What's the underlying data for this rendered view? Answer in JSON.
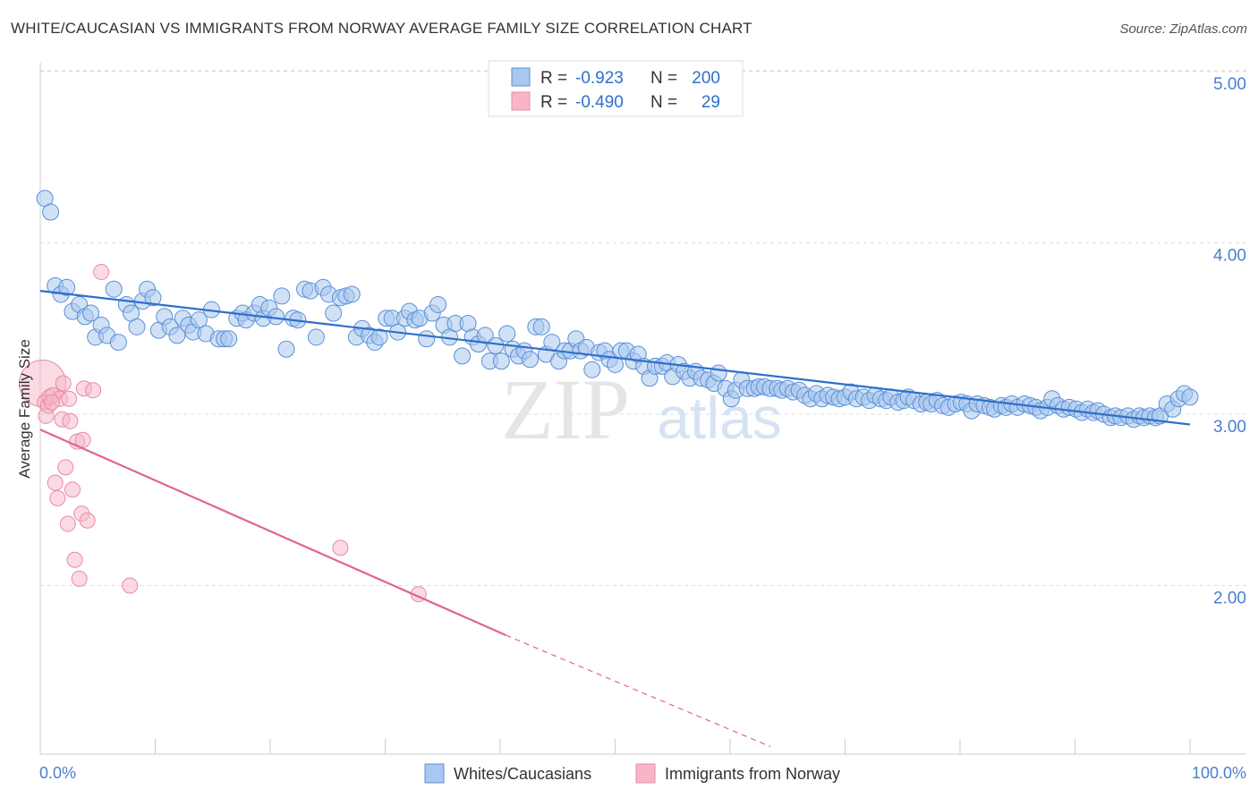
{
  "title": "WHITE/CAUCASIAN VS IMMIGRANTS FROM NORWAY AVERAGE FAMILY SIZE CORRELATION CHART",
  "source": "Source: ZipAtlas.com",
  "watermark": {
    "zip": "ZIP",
    "atlas": "atlas"
  },
  "colors": {
    "blue_fill": "#a9c8ef",
    "blue_stroke": "#5b8fd6",
    "blue_line": "#2f6fcb",
    "pink_fill": "#f7b6c8",
    "pink_stroke": "#e88aa6",
    "pink_line": "#e0648f",
    "tick_label": "#4a7fd0",
    "grid": "#dddddd"
  },
  "legend_top": {
    "rows": [
      {
        "r_label": "R =",
        "r_value": "-0.923",
        "n_label": "N =",
        "n_value": "200"
      },
      {
        "r_label": "R =",
        "r_value": "-0.490",
        "n_label": "N =",
        "n_value": "29"
      }
    ]
  },
  "legend_bottom": {
    "items": [
      {
        "label": "Whites/Caucasians"
      },
      {
        "label": "Immigrants from Norway"
      }
    ]
  },
  "chart_data": {
    "type": "scatter",
    "ylabel": "Average Family Size",
    "x_tick_labels": [
      "0.0%",
      "100.0%"
    ],
    "y_ticks": [
      {
        "value": 2.0,
        "label": "2.00"
      },
      {
        "value": 3.0,
        "label": "3.00"
      },
      {
        "value": 4.0,
        "label": "4.00"
      },
      {
        "value": 5.0,
        "label": "5.00"
      }
    ],
    "xlim": [
      0,
      100
    ],
    "ylim": [
      1.08,
      5.1
    ],
    "grid": true,
    "series": [
      {
        "name": "Whites/Caucasians",
        "trend": {
          "x0": 0,
          "y0": 3.72,
          "x1": 100,
          "y1": 2.94
        },
        "points": [
          [
            0.4,
            4.26
          ],
          [
            0.9,
            4.18
          ],
          [
            1.3,
            3.75
          ],
          [
            1.8,
            3.7
          ],
          [
            2.3,
            3.74
          ],
          [
            2.8,
            3.6
          ],
          [
            3.4,
            3.64
          ],
          [
            3.9,
            3.57
          ],
          [
            4.4,
            3.59
          ],
          [
            4.8,
            3.45
          ],
          [
            5.3,
            3.52
          ],
          [
            5.8,
            3.46
          ],
          [
            6.4,
            3.73
          ],
          [
            6.8,
            3.42
          ],
          [
            7.5,
            3.64
          ],
          [
            7.9,
            3.59
          ],
          [
            8.4,
            3.51
          ],
          [
            8.9,
            3.66
          ],
          [
            9.3,
            3.73
          ],
          [
            9.8,
            3.68
          ],
          [
            10.3,
            3.49
          ],
          [
            10.8,
            3.57
          ],
          [
            11.3,
            3.51
          ],
          [
            11.9,
            3.46
          ],
          [
            12.4,
            3.56
          ],
          [
            12.9,
            3.52
          ],
          [
            13.3,
            3.48
          ],
          [
            13.8,
            3.55
          ],
          [
            14.4,
            3.47
          ],
          [
            14.9,
            3.61
          ],
          [
            15.5,
            3.44
          ],
          [
            16.0,
            3.44
          ],
          [
            16.4,
            3.44
          ],
          [
            17.1,
            3.56
          ],
          [
            17.6,
            3.59
          ],
          [
            17.9,
            3.55
          ],
          [
            18.6,
            3.59
          ],
          [
            19.1,
            3.64
          ],
          [
            19.4,
            3.56
          ],
          [
            19.9,
            3.62
          ],
          [
            20.5,
            3.57
          ],
          [
            21.0,
            3.69
          ],
          [
            21.4,
            3.38
          ],
          [
            22.0,
            3.56
          ],
          [
            22.4,
            3.55
          ],
          [
            23.0,
            3.73
          ],
          [
            23.5,
            3.72
          ],
          [
            24.0,
            3.45
          ],
          [
            24.6,
            3.74
          ],
          [
            25.1,
            3.7
          ],
          [
            25.5,
            3.59
          ],
          [
            26.1,
            3.68
          ],
          [
            26.6,
            3.69
          ],
          [
            27.1,
            3.7
          ],
          [
            27.5,
            3.45
          ],
          [
            28.0,
            3.5
          ],
          [
            28.6,
            3.46
          ],
          [
            29.1,
            3.42
          ],
          [
            29.5,
            3.45
          ],
          [
            30.1,
            3.56
          ],
          [
            30.6,
            3.56
          ],
          [
            31.1,
            3.48
          ],
          [
            31.7,
            3.56
          ],
          [
            32.1,
            3.6
          ],
          [
            32.6,
            3.55
          ],
          [
            33.0,
            3.56
          ],
          [
            33.6,
            3.44
          ],
          [
            34.1,
            3.59
          ],
          [
            34.6,
            3.64
          ],
          [
            35.1,
            3.52
          ],
          [
            35.6,
            3.45
          ],
          [
            36.1,
            3.53
          ],
          [
            36.7,
            3.34
          ],
          [
            37.2,
            3.53
          ],
          [
            37.6,
            3.45
          ],
          [
            38.1,
            3.41
          ],
          [
            38.7,
            3.46
          ],
          [
            39.1,
            3.31
          ],
          [
            39.6,
            3.4
          ],
          [
            40.1,
            3.31
          ],
          [
            40.6,
            3.47
          ],
          [
            41.1,
            3.38
          ],
          [
            41.6,
            3.34
          ],
          [
            42.1,
            3.37
          ],
          [
            42.6,
            3.32
          ],
          [
            43.1,
            3.51
          ],
          [
            43.6,
            3.51
          ],
          [
            44.0,
            3.35
          ],
          [
            44.5,
            3.42
          ],
          [
            45.1,
            3.31
          ],
          [
            45.6,
            3.37
          ],
          [
            46.1,
            3.37
          ],
          [
            46.6,
            3.44
          ],
          [
            47.0,
            3.37
          ],
          [
            47.5,
            3.39
          ],
          [
            48.0,
            3.26
          ],
          [
            48.6,
            3.36
          ],
          [
            49.1,
            3.37
          ],
          [
            49.5,
            3.32
          ],
          [
            50.0,
            3.29
          ],
          [
            50.5,
            3.37
          ],
          [
            51.0,
            3.37
          ],
          [
            51.6,
            3.31
          ],
          [
            52.0,
            3.35
          ],
          [
            52.5,
            3.28
          ],
          [
            53.0,
            3.21
          ],
          [
            53.5,
            3.28
          ],
          [
            54.1,
            3.28
          ],
          [
            54.5,
            3.3
          ],
          [
            55.0,
            3.22
          ],
          [
            55.5,
            3.29
          ],
          [
            56.0,
            3.25
          ],
          [
            56.5,
            3.21
          ],
          [
            57.0,
            3.25
          ],
          [
            57.5,
            3.21
          ],
          [
            58.1,
            3.2
          ],
          [
            58.6,
            3.18
          ],
          [
            59.0,
            3.24
          ],
          [
            59.6,
            3.15
          ],
          [
            60.1,
            3.09
          ],
          [
            60.5,
            3.14
          ],
          [
            61.0,
            3.2
          ],
          [
            61.5,
            3.15
          ],
          [
            62.1,
            3.15
          ],
          [
            62.5,
            3.16
          ],
          [
            63.0,
            3.16
          ],
          [
            63.5,
            3.15
          ],
          [
            64.1,
            3.15
          ],
          [
            64.5,
            3.14
          ],
          [
            65.0,
            3.15
          ],
          [
            65.5,
            3.13
          ],
          [
            66.0,
            3.14
          ],
          [
            66.5,
            3.11
          ],
          [
            67.0,
            3.09
          ],
          [
            67.5,
            3.12
          ],
          [
            68.0,
            3.09
          ],
          [
            68.5,
            3.11
          ],
          [
            69.0,
            3.1
          ],
          [
            69.5,
            3.09
          ],
          [
            70.0,
            3.1
          ],
          [
            70.5,
            3.13
          ],
          [
            71.0,
            3.09
          ],
          [
            71.6,
            3.1
          ],
          [
            72.1,
            3.08
          ],
          [
            72.6,
            3.11
          ],
          [
            73.1,
            3.09
          ],
          [
            73.6,
            3.08
          ],
          [
            74.0,
            3.1
          ],
          [
            74.6,
            3.07
          ],
          [
            75.1,
            3.08
          ],
          [
            75.5,
            3.1
          ],
          [
            76.0,
            3.08
          ],
          [
            76.6,
            3.06
          ],
          [
            77.1,
            3.07
          ],
          [
            77.5,
            3.06
          ],
          [
            78.0,
            3.08
          ],
          [
            78.5,
            3.05
          ],
          [
            79.0,
            3.04
          ],
          [
            79.6,
            3.06
          ],
          [
            80.1,
            3.07
          ],
          [
            80.6,
            3.06
          ],
          [
            81.0,
            3.02
          ],
          [
            81.5,
            3.06
          ],
          [
            82.1,
            3.05
          ],
          [
            82.6,
            3.04
          ],
          [
            83.0,
            3.03
          ],
          [
            83.6,
            3.05
          ],
          [
            84.0,
            3.04
          ],
          [
            84.5,
            3.06
          ],
          [
            85.0,
            3.04
          ],
          [
            85.6,
            3.06
          ],
          [
            86.1,
            3.05
          ],
          [
            86.6,
            3.04
          ],
          [
            87.0,
            3.02
          ],
          [
            87.6,
            3.04
          ],
          [
            88.0,
            3.09
          ],
          [
            88.5,
            3.05
          ],
          [
            89.0,
            3.03
          ],
          [
            89.5,
            3.04
          ],
          [
            90.1,
            3.03
          ],
          [
            90.6,
            3.01
          ],
          [
            91.1,
            3.03
          ],
          [
            91.6,
            3.01
          ],
          [
            92.0,
            3.02
          ],
          [
            92.5,
            3.0
          ],
          [
            93.1,
            2.98
          ],
          [
            93.5,
            2.99
          ],
          [
            94.0,
            2.98
          ],
          [
            94.6,
            2.99
          ],
          [
            95.1,
            2.97
          ],
          [
            95.6,
            2.99
          ],
          [
            96.0,
            2.98
          ],
          [
            96.5,
            2.99
          ],
          [
            97.0,
            2.98
          ],
          [
            97.4,
            2.99
          ],
          [
            98.0,
            3.06
          ],
          [
            98.5,
            3.03
          ],
          [
            99.0,
            3.09
          ],
          [
            99.5,
            3.12
          ],
          [
            100.0,
            3.1
          ]
        ]
      },
      {
        "name": "Immigrants from Norway",
        "trend": {
          "x0": 0,
          "y0": 2.91,
          "x1": 40.5,
          "y1": 1.71,
          "dash_x1": 63.5,
          "dash_y1": 1.06
        },
        "points": [
          [
            0.2,
            3.18
          ],
          [
            0.4,
            3.07
          ],
          [
            0.5,
            2.99
          ],
          [
            0.7,
            3.05
          ],
          [
            0.8,
            3.1
          ],
          [
            1.1,
            3.11
          ],
          [
            1.3,
            2.6
          ],
          [
            1.5,
            2.51
          ],
          [
            1.7,
            3.09
          ],
          [
            1.9,
            2.97
          ],
          [
            2.0,
            3.18
          ],
          [
            2.2,
            2.69
          ],
          [
            2.4,
            2.36
          ],
          [
            2.5,
            3.09
          ],
          [
            2.6,
            2.96
          ],
          [
            2.8,
            2.56
          ],
          [
            3.0,
            2.15
          ],
          [
            3.2,
            2.84
          ],
          [
            3.4,
            2.04
          ],
          [
            3.6,
            2.42
          ],
          [
            3.7,
            2.85
          ],
          [
            3.8,
            3.15
          ],
          [
            4.1,
            2.38
          ],
          [
            4.6,
            3.14
          ],
          [
            5.3,
            3.83
          ],
          [
            7.8,
            2.0
          ],
          [
            26.1,
            2.22
          ],
          [
            32.9,
            1.95
          ],
          [
            1.0,
            3.07
          ]
        ]
      }
    ]
  }
}
